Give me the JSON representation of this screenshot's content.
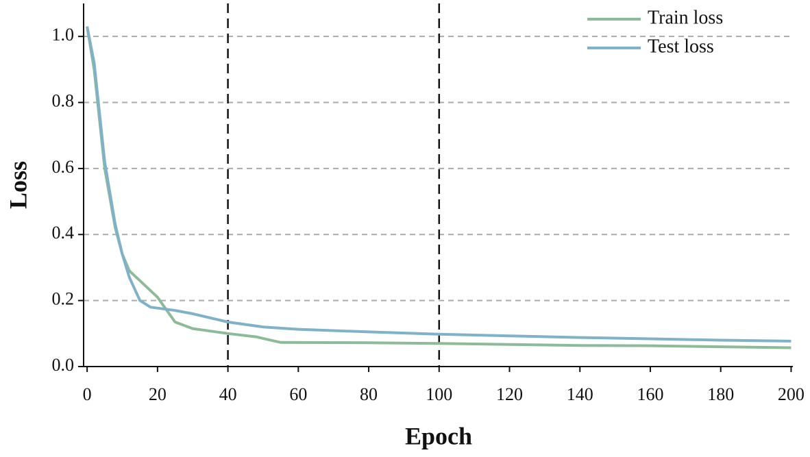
{
  "chart_data": {
    "type": "line",
    "x_label": "Epoch",
    "y_label": "Loss",
    "xlim": [
      -1,
      200.5
    ],
    "ylim": [
      0,
      1.1
    ],
    "xticks": [
      0,
      20,
      40,
      60,
      80,
      100,
      120,
      140,
      160,
      180,
      200
    ],
    "yticks": [
      {
        "value": 0,
        "label": "0.0"
      },
      0.2,
      0.4,
      0.6,
      0.8,
      {
        "value": 1,
        "label": "1.0"
      }
    ],
    "grid": true,
    "vlines": [
      40,
      100
    ],
    "legend": "top-right",
    "series": [
      {
        "name": "Train loss",
        "color": "#8dbb98",
        "x": [
          0,
          2,
          5,
          8,
          10,
          12,
          15,
          20,
          22,
          25,
          30,
          40,
          48,
          55,
          80,
          100,
          120,
          140,
          160,
          180,
          200
        ],
        "values": [
          1.03,
          0.9,
          0.6,
          0.42,
          0.34,
          0.29,
          0.26,
          0.21,
          0.18,
          0.135,
          0.115,
          0.1,
          0.09,
          0.073,
          0.072,
          0.07,
          0.067,
          0.064,
          0.063,
          0.06,
          0.057
        ]
      },
      {
        "name": "Test loss",
        "color": "#7fb1c9",
        "x": [
          0,
          2,
          5,
          8,
          10,
          12,
          15,
          18,
          25,
          30,
          40,
          50,
          60,
          80,
          100,
          120,
          140,
          160,
          180,
          200
        ],
        "values": [
          1.03,
          0.92,
          0.62,
          0.43,
          0.34,
          0.27,
          0.2,
          0.18,
          0.17,
          0.16,
          0.135,
          0.12,
          0.113,
          0.105,
          0.098,
          0.093,
          0.088,
          0.084,
          0.08,
          0.077
        ]
      }
    ]
  }
}
